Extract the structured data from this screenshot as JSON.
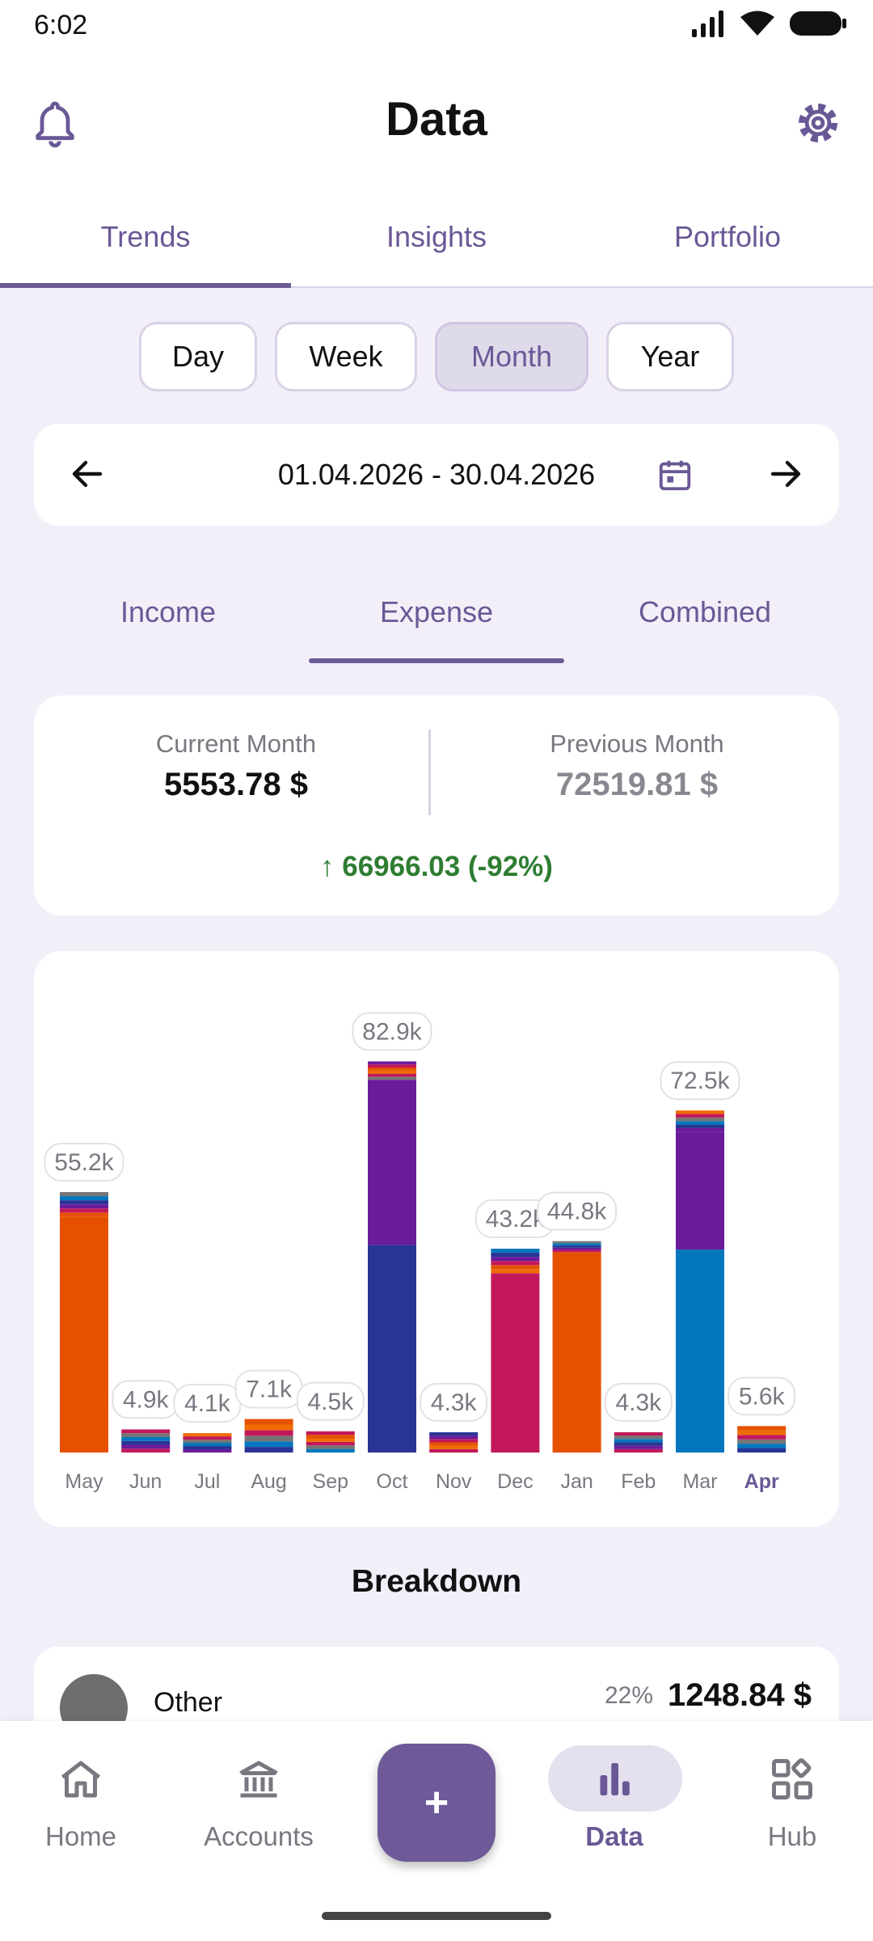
{
  "status": {
    "time": "6:02"
  },
  "header": {
    "title": "Data"
  },
  "main_tabs": [
    {
      "label": "Trends",
      "active": true
    },
    {
      "label": "Insights",
      "active": false
    },
    {
      "label": "Portfolio",
      "active": false
    }
  ],
  "period": {
    "options": [
      "Day",
      "Week",
      "Month",
      "Year"
    ],
    "selected": "Month"
  },
  "date_range": {
    "text": "01.04.2026 - 30.04.2026"
  },
  "sub_tabs": [
    {
      "label": "Income",
      "active": false
    },
    {
      "label": "Expense",
      "active": true
    },
    {
      "label": "Combined",
      "active": false
    }
  ],
  "summary": {
    "current_label": "Current Month",
    "current_value": "5553.78 $",
    "previous_label": "Previous Month",
    "previous_value": "72519.81 $",
    "change": "↑ 66966.03 (-92%)",
    "change_color": "#2e7d32"
  },
  "chart_data": {
    "type": "bar",
    "categories": [
      "May",
      "Jun",
      "Jul",
      "Aug",
      "Sep",
      "Oct",
      "Nov",
      "Dec",
      "Jan",
      "Feb",
      "Mar",
      "Apr"
    ],
    "values": [
      55.2,
      4.9,
      4.1,
      7.1,
      4.5,
      82.9,
      4.3,
      43.2,
      44.8,
      4.3,
      72.5,
      5.6
    ],
    "value_labels": [
      "55.2k",
      "4.9k",
      "4.1k",
      "7.1k",
      "4.5k",
      "82.9k",
      "4.3k",
      "43.2k",
      "44.8k",
      "4.3k",
      "72.5k",
      "5.6k"
    ],
    "highlighted": "Apr",
    "dominant_segments": [
      {
        "color": "#e65100",
        "value": 50.0
      },
      null,
      null,
      null,
      null,
      {
        "color": "#283593",
        "value": 44.0,
        "second_color": "#6a1b9a",
        "second_value": 35.0
      },
      null,
      {
        "color": "#c2185b",
        "value": 38.0
      },
      {
        "color": "#e65100",
        "value": 42.0
      },
      null,
      {
        "color": "#0277bd",
        "value": 43.0,
        "second_color": "#6a1b9a",
        "second_value": 25.0
      },
      null
    ],
    "ylim": [
      0,
      90
    ]
  },
  "breakdown": {
    "title": "Breakdown",
    "items": [
      {
        "name": "Other",
        "percent": "22%",
        "amount": "1248.84 $"
      }
    ]
  },
  "bottom_nav": {
    "items": [
      {
        "label": "Home",
        "icon": "home-icon",
        "active": false
      },
      {
        "label": "Accounts",
        "icon": "bank-icon",
        "active": false
      },
      {
        "label": "Data",
        "icon": "bar-chart-icon",
        "active": true
      },
      {
        "label": "Hub",
        "icon": "grid-icon",
        "active": false
      }
    ],
    "fab_label": "+"
  },
  "colors": {
    "accent": "#6b5a95",
    "background": "#f3eff9"
  }
}
